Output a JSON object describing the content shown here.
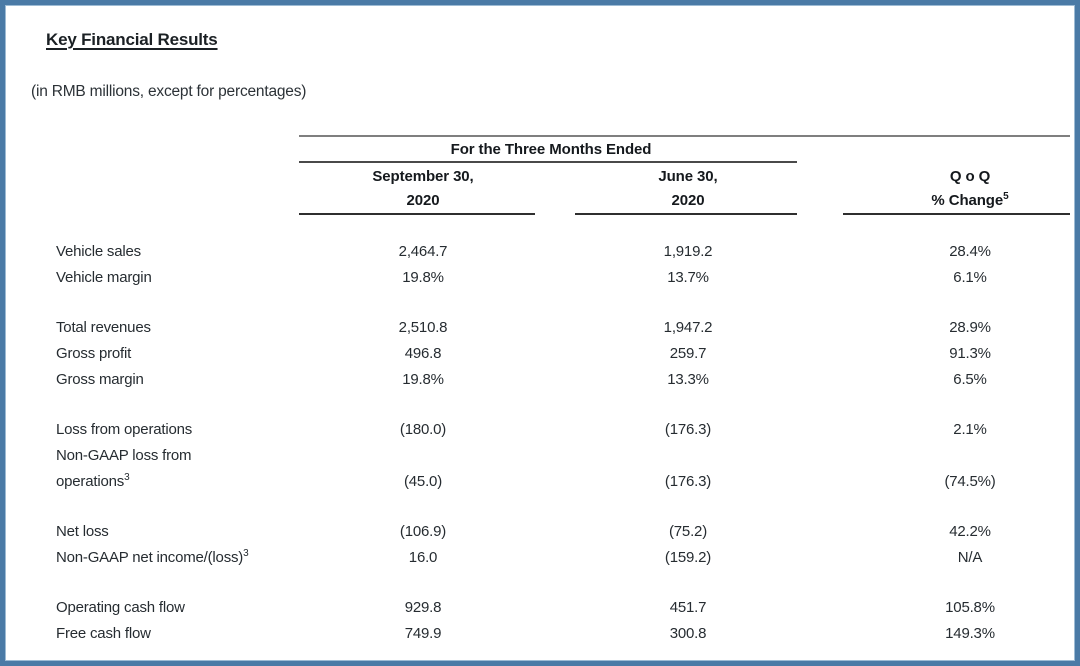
{
  "title": "Key Financial Results",
  "subtitle": "(in RMB millions, except for percentages)",
  "colors": {
    "page_border": "#4a7aa6",
    "text": "#262c31",
    "heavy_rule": "#7f7f7f",
    "header_rule": "#2f2f2f"
  },
  "table": {
    "spanner_header": "For the Three Months Ended",
    "columns": [
      {
        "line1": "September 30,",
        "line2": "2020",
        "sup": ""
      },
      {
        "line1": "June 30,",
        "line2": "2020",
        "sup": ""
      },
      {
        "line1": "Q o Q",
        "line2": "% Change",
        "sup": "5"
      }
    ],
    "groups": [
      {
        "rows": [
          {
            "label": "Vehicle sales",
            "values": [
              "2,464.7",
              "1,919.2",
              "28.4%"
            ]
          },
          {
            "label": "Vehicle margin",
            "values": [
              "19.8%",
              "13.7%",
              "6.1%"
            ]
          }
        ]
      },
      {
        "rows": [
          {
            "label": "Total revenues",
            "values": [
              "2,510.8",
              "1,947.2",
              "28.9%"
            ]
          },
          {
            "label": "Gross profit",
            "values": [
              "496.8",
              "259.7",
              "91.3%"
            ]
          },
          {
            "label": "Gross margin",
            "values": [
              "19.8%",
              "13.3%",
              "6.5%"
            ]
          }
        ]
      },
      {
        "rows": [
          {
            "label": "Loss from operations",
            "values": [
              "(180.0)",
              "(176.3)",
              "2.1%"
            ]
          },
          {
            "label_lines": [
              "Non-GAAP loss from",
              "operations"
            ],
            "sup": "3",
            "values": [
              "(45.0)",
              "(176.3)",
              "(74.5%)"
            ]
          }
        ]
      },
      {
        "rows": [
          {
            "label": "Net loss",
            "values": [
              "(106.9)",
              "(75.2)",
              "42.2%"
            ]
          },
          {
            "label": "Non-GAAP net income/(loss)",
            "sup": "3",
            "values": [
              "16.0",
              "(159.2)",
              "N/A"
            ]
          }
        ]
      },
      {
        "rows": [
          {
            "label": "Operating cash flow",
            "values": [
              "929.8",
              "451.7",
              "105.8%"
            ]
          },
          {
            "label": "Free cash flow",
            "values": [
              "749.9",
              "300.8",
              "149.3%"
            ]
          }
        ]
      }
    ]
  }
}
